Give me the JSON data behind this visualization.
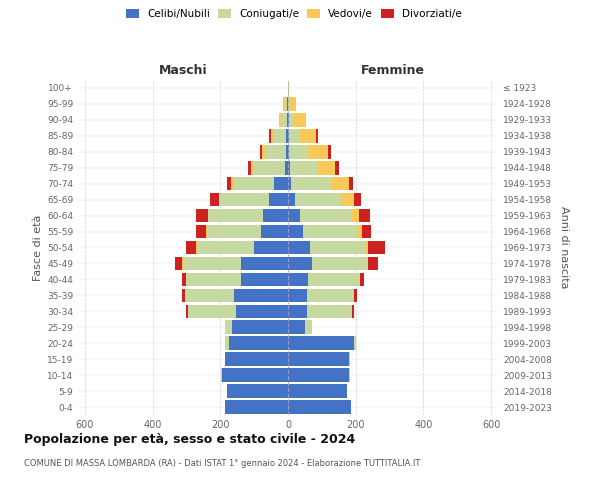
{
  "age_groups": [
    "0-4",
    "5-9",
    "10-14",
    "15-19",
    "20-24",
    "25-29",
    "30-34",
    "35-39",
    "40-44",
    "45-49",
    "50-54",
    "55-59",
    "60-64",
    "65-69",
    "70-74",
    "75-79",
    "80-84",
    "85-89",
    "90-94",
    "95-99",
    "100+"
  ],
  "birth_years": [
    "2019-2023",
    "2014-2018",
    "2009-2013",
    "2004-2008",
    "1999-2003",
    "1994-1998",
    "1989-1993",
    "1984-1988",
    "1979-1983",
    "1974-1978",
    "1969-1973",
    "1964-1968",
    "1959-1963",
    "1954-1958",
    "1949-1953",
    "1944-1948",
    "1939-1943",
    "1934-1938",
    "1929-1933",
    "1924-1928",
    "≤ 1923"
  ],
  "male": {
    "celibi": [
      185,
      180,
      195,
      185,
      175,
      165,
      155,
      160,
      140,
      140,
      100,
      80,
      75,
      55,
      40,
      10,
      6,
      5,
      3,
      2,
      1
    ],
    "coniugati": [
      0,
      0,
      2,
      2,
      10,
      20,
      140,
      145,
      160,
      170,
      170,
      160,
      160,
      145,
      120,
      90,
      60,
      35,
      15,
      5,
      0
    ],
    "vedovi": [
      0,
      0,
      0,
      0,
      0,
      0,
      0,
      0,
      0,
      2,
      2,
      2,
      2,
      5,
      8,
      8,
      10,
      10,
      10,
      8,
      0
    ],
    "divorziati": [
      0,
      0,
      0,
      0,
      0,
      2,
      5,
      8,
      12,
      22,
      28,
      30,
      35,
      25,
      12,
      10,
      8,
      5,
      0,
      0,
      0
    ]
  },
  "female": {
    "nubili": [
      185,
      175,
      180,
      180,
      195,
      50,
      55,
      55,
      60,
      70,
      65,
      45,
      35,
      20,
      10,
      5,
      3,
      3,
      2,
      1,
      1
    ],
    "coniugate": [
      0,
      0,
      2,
      2,
      5,
      20,
      135,
      140,
      150,
      165,
      165,
      160,
      155,
      135,
      120,
      80,
      55,
      30,
      15,
      5,
      0
    ],
    "vedove": [
      0,
      0,
      0,
      0,
      0,
      0,
      0,
      0,
      2,
      2,
      5,
      12,
      20,
      40,
      50,
      55,
      60,
      50,
      35,
      18,
      2
    ],
    "divorziate": [
      0,
      0,
      0,
      0,
      0,
      2,
      5,
      8,
      12,
      30,
      50,
      28,
      32,
      20,
      12,
      10,
      8,
      5,
      0,
      0,
      0
    ]
  },
  "colors": {
    "celibi": "#4472C4",
    "coniugati": "#C5D9A0",
    "vedovi": "#FAC858",
    "divorziati": "#CC2222"
  },
  "xlim": 620,
  "title": "Popolazione per età, sesso e stato civile - 2024",
  "subtitle": "COMUNE DI MASSA LOMBARDA (RA) - Dati ISTAT 1° gennaio 2024 - Elaborazione TUTTITALIA.IT",
  "ylabel_left": "Fasce di età",
  "ylabel_right": "Anni di nascita",
  "xlabel_left": "Maschi",
  "xlabel_right": "Femmine",
  "background_color": "#ffffff",
  "grid_color": "#cccccc"
}
